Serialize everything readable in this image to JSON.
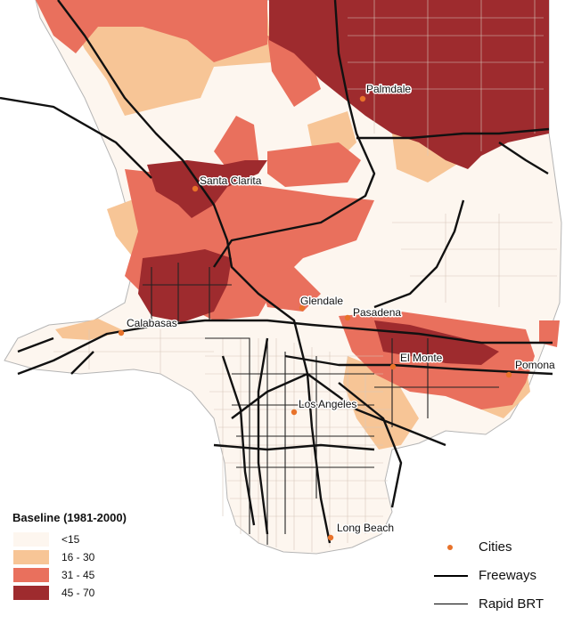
{
  "legend": {
    "title": "Baseline (1981-2000)",
    "classes": [
      {
        "label": "<15",
        "color": "#fdf6ef"
      },
      {
        "label": "16 - 30",
        "color": "#f7c596"
      },
      {
        "label": "31 - 45",
        "color": "#e9705d"
      },
      {
        "label": "45 - 70",
        "color": "#9e2b2e"
      }
    ],
    "network": [
      {
        "label": "Cities",
        "symbol": "dot",
        "color": "#e8722a"
      },
      {
        "label": "Freeways",
        "symbol": "thick-line",
        "color": "#000000"
      },
      {
        "label": "Rapid BRT",
        "symbol": "thin-line",
        "color": "#000000"
      }
    ]
  },
  "cities": [
    {
      "name": "Palmdale"
    },
    {
      "name": "Santa Clarita"
    },
    {
      "name": "Glendale"
    },
    {
      "name": "Pasadena"
    },
    {
      "name": "Calabasas"
    },
    {
      "name": "El Monte"
    },
    {
      "name": "Pomona"
    },
    {
      "name": "Los Angeles"
    },
    {
      "name": "Long Beach"
    }
  ],
  "colors": {
    "outline": "#bdbdbd",
    "city_dot": "#e8722a"
  }
}
